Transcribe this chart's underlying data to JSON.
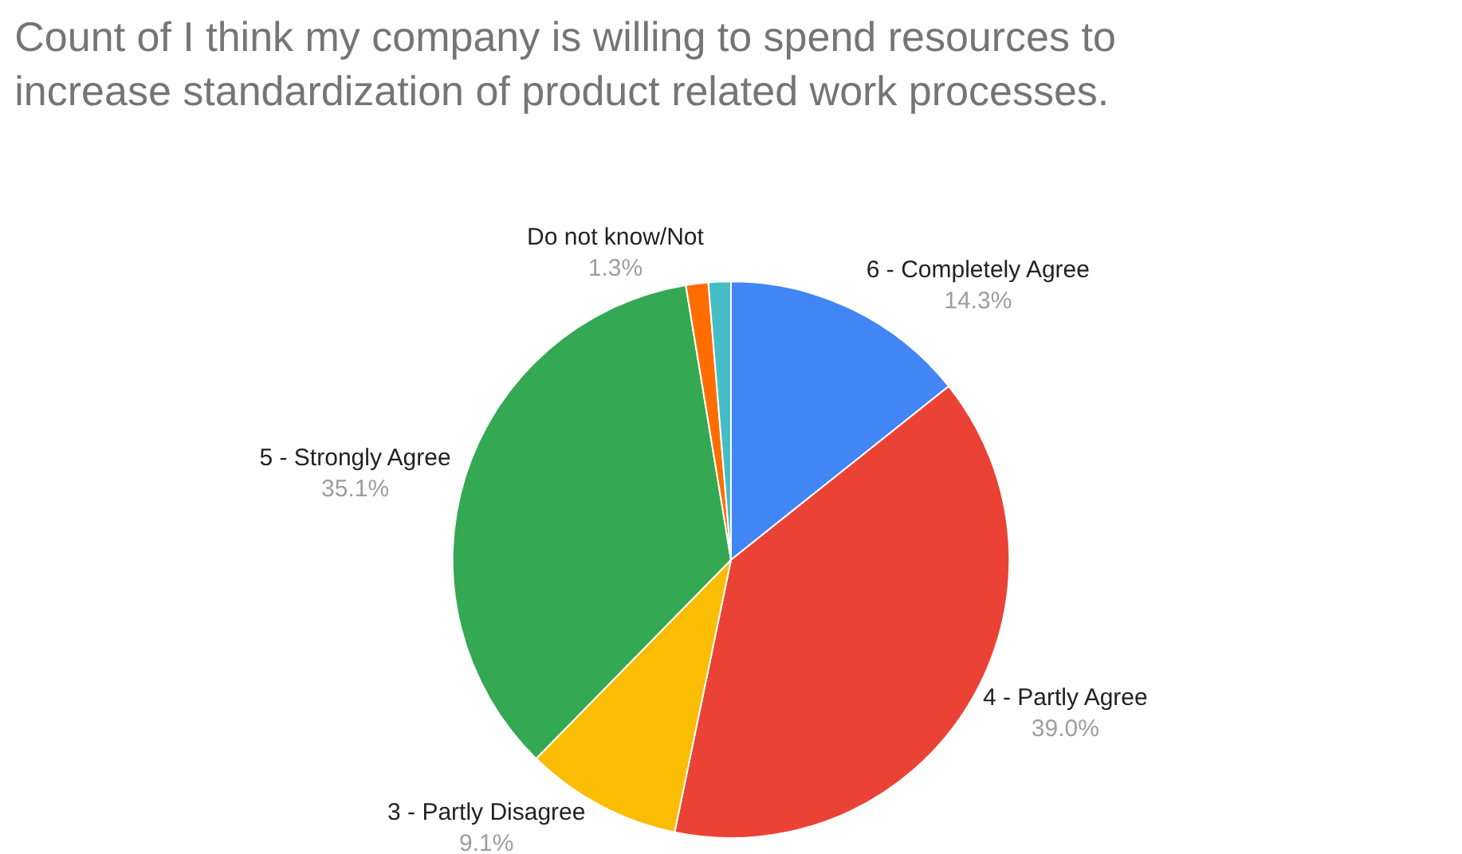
{
  "chart_data": {
    "type": "pie",
    "title": "Count of I think my company is willing to spend resources to increase standardization of product related work processes.",
    "categories": [
      "6 - Completely Agree",
      "4 - Partly Agree",
      "3 - Partly Disagree",
      "5 - Strongly Agree",
      null,
      "Do not know/Not"
    ],
    "values": [
      14.3,
      39.0,
      9.1,
      35.1,
      1.3,
      1.3
    ],
    "value_labels": [
      "14.3%",
      "39.0%",
      "9.1%",
      "35.1%",
      null,
      "1.3%"
    ],
    "colors": [
      "#4285f4",
      "#ea4335",
      "#fbbc04",
      "#34a853",
      "#ff6d01",
      "#46bdc6"
    ],
    "legend": false
  }
}
